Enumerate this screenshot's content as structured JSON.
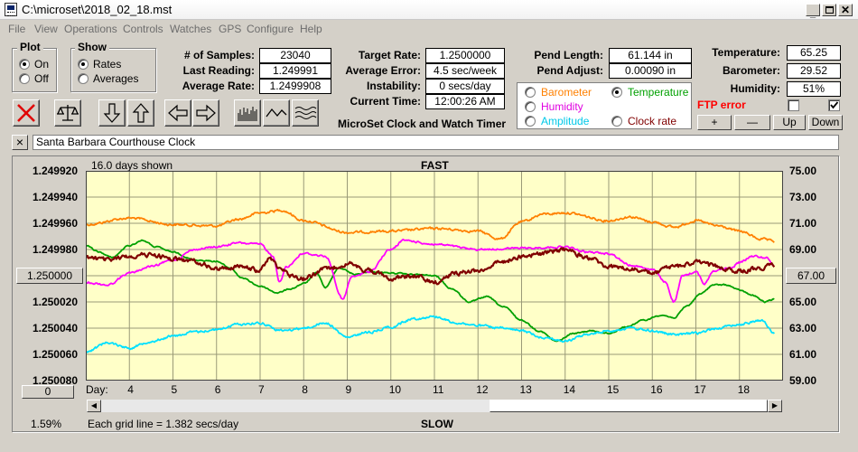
{
  "window": {
    "title": "C:\\microset\\2018_02_18.mst"
  },
  "menu": [
    "File",
    "View",
    "Operations",
    "Controls",
    "Watches",
    "GPS",
    "Configure",
    "Help"
  ],
  "plot_group": {
    "title": "Plot",
    "on": "On",
    "off": "Off",
    "selected": "On"
  },
  "show_group": {
    "title": "Show",
    "rates": "Rates",
    "averages": "Averages",
    "selected": "Rates"
  },
  "stats": {
    "samples_label": "# of Samples:",
    "samples": "23040",
    "last_label": "Last Reading:",
    "last": "1.249991",
    "avg_label": "Average Rate:",
    "avg": "1.2499908"
  },
  "rates": {
    "target_label": "Target Rate:",
    "target": "1.2500000",
    "error_label": "Average Error:",
    "error": "4.5 sec/week",
    "instab_label": "Instability:",
    "instab": "0 secs/day",
    "time_label": "Current Time:",
    "time": "12:00:26 AM",
    "app_name": "MicroSet Clock and Watch Timer"
  },
  "pend": {
    "length_label": "Pend Length:",
    "length": "61.144 in",
    "adjust_label": "Pend Adjust:",
    "adjust": "0.00090 in"
  },
  "sensor_select": {
    "barometer": "Barometer",
    "temperature": "Temperature",
    "humidity": "Humidity",
    "amplitude": "Amplitude",
    "clock_rate": "Clock rate",
    "selected": "Temperature"
  },
  "environment": {
    "temp_label": "Temperature:",
    "temp": "65.25",
    "baro_label": "Barometer:",
    "baro": "29.52",
    "hum_label": "Humidity:",
    "hum": "51%",
    "ftp": "FTP error",
    "ftp_check1": false,
    "ftp_check2": true,
    "btn_plus": "+",
    "btn_minus": "—",
    "btn_up": "Up",
    "btn_down": "Down"
  },
  "clock_name": "Santa Barbara Courthouse Clock",
  "close_glyph": "×",
  "chart_header": {
    "days_shown": "16.0 days shown",
    "fast": "FAST",
    "slow": "SLOW"
  },
  "left_axis_button": "1.250000",
  "right_axis_button": "67.00",
  "zero_button": "0",
  "percent": "1.59%",
  "grid_note": "Each grid line = 1.382 secs/day",
  "colors": {
    "plot_bg": "#ffffc8",
    "grid": "#9a9a78",
    "barometer": "#ff8000",
    "temperature": "#00a000",
    "humidity": "#ff00ff",
    "amplitude": "#00e0ff",
    "clock_rate": "#800000",
    "ftp": "#ff0000",
    "stop": "#e00000"
  },
  "chart_data": {
    "type": "line",
    "xlabel": "Day:",
    "x_ticks": [
      4,
      5,
      6,
      7,
      8,
      9,
      10,
      11,
      12,
      13,
      14,
      15,
      16,
      17,
      18
    ],
    "xlim": [
      3.0,
      19.0
    ],
    "left_ticks": [
      "1.249920",
      "1.249940",
      "1.249960",
      "1.249980",
      "1.250000",
      "1.250020",
      "1.250040",
      "1.250060",
      "1.250080"
    ],
    "left_ylim": [
      1.24992,
      1.25008
    ],
    "right_ticks": [
      "75.00",
      "73.00",
      "71.00",
      "69.00",
      "67.00",
      "65.00",
      "63.00",
      "61.00",
      "59.00"
    ],
    "right_ylim": [
      59,
      75
    ],
    "series": [
      {
        "name": "Barometer",
        "color": "#ff8000",
        "axis": "left",
        "noise": 1.5e-06,
        "points": [
          [
            3,
            1.249961
          ],
          [
            4,
            1.249956
          ],
          [
            5,
            1.249961
          ],
          [
            6,
            1.249962
          ],
          [
            6.5,
            1.249957
          ],
          [
            7,
            1.249952
          ],
          [
            7.5,
            1.24995
          ],
          [
            8,
            1.249958
          ],
          [
            9,
            1.249967
          ],
          [
            10,
            1.249966
          ],
          [
            11,
            1.249964
          ],
          [
            12,
            1.249966
          ],
          [
            12.5,
            1.249972
          ],
          [
            13,
            1.249959
          ],
          [
            13.5,
            1.249953
          ],
          [
            14,
            1.249952
          ],
          [
            15,
            1.249958
          ],
          [
            15.5,
            1.249955
          ],
          [
            16,
            1.249959
          ],
          [
            16.5,
            1.249963
          ],
          [
            17,
            1.249958
          ],
          [
            17.5,
            1.249962
          ],
          [
            18,
            1.249966
          ],
          [
            18.5,
            1.249972
          ],
          [
            18.8,
            1.249974
          ]
        ]
      },
      {
        "name": "Temperature",
        "color": "#00a000",
        "axis": "left",
        "noise": 8e-07,
        "points": [
          [
            3,
            1.249977
          ],
          [
            3.3,
            1.249982
          ],
          [
            3.6,
            1.249986
          ],
          [
            4,
            1.249977
          ],
          [
            4.3,
            1.249973
          ],
          [
            4.6,
            1.249978
          ],
          [
            5,
            1.249982
          ],
          [
            5.5,
            1.249988
          ],
          [
            6,
            1.249989
          ],
          [
            6.3,
            1.249994
          ],
          [
            6.6,
            1.250002
          ],
          [
            7,
            1.250008
          ],
          [
            7.4,
            1.250013
          ],
          [
            7.7,
            1.25001
          ],
          [
            8,
            1.250006
          ],
          [
            8.3,
            1.249998
          ],
          [
            8.5,
            1.250009
          ],
          [
            8.8,
            1.249994
          ],
          [
            9.2,
            1.249999
          ],
          [
            9.5,
            1.249997
          ],
          [
            10,
            1.249998
          ],
          [
            10.5,
            1.249999
          ],
          [
            11,
            1.25
          ],
          [
            11.4,
            1.25001
          ],
          [
            11.8,
            1.25002
          ],
          [
            12.2,
            1.250016
          ],
          [
            12.6,
            1.250024
          ],
          [
            13,
            1.250034
          ],
          [
            13.4,
            1.250042
          ],
          [
            13.8,
            1.25005
          ],
          [
            14.2,
            1.250044
          ],
          [
            14.6,
            1.250042
          ],
          [
            15,
            1.250044
          ],
          [
            15.4,
            1.250039
          ],
          [
            15.8,
            1.250034
          ],
          [
            16.2,
            1.25003
          ],
          [
            16.5,
            1.250032
          ],
          [
            16.8,
            1.250023
          ],
          [
            17.1,
            1.250014
          ],
          [
            17.4,
            1.250007
          ],
          [
            17.7,
            1.250007
          ],
          [
            18,
            1.250011
          ],
          [
            18.3,
            1.250015
          ],
          [
            18.6,
            1.25002
          ],
          [
            18.8,
            1.250018
          ]
        ]
      },
      {
        "name": "Humidity",
        "color": "#ff00ff",
        "axis": "left",
        "noise": 1.2e-06,
        "points": [
          [
            3,
            1.250005
          ],
          [
            3.5,
            1.250007
          ],
          [
            4,
            1.249998
          ],
          [
            4.5,
            1.249993
          ],
          [
            5,
            1.249988
          ],
          [
            5.5,
            1.24998
          ],
          [
            6,
            1.249978
          ],
          [
            6.5,
            1.249975
          ],
          [
            7,
            1.249976
          ],
          [
            7.3,
            1.249985
          ],
          [
            7.45,
            1.250005
          ],
          [
            7.6,
            1.249993
          ],
          [
            8,
            1.249983
          ],
          [
            8.5,
            1.249985
          ],
          [
            8.9,
            1.250018
          ],
          [
            9.1,
            1.250001
          ],
          [
            9.5,
            1.249997
          ],
          [
            10,
            1.24998
          ],
          [
            10.3,
            1.249973
          ],
          [
            11,
            1.249976
          ],
          [
            12,
            1.24998
          ],
          [
            13,
            1.249979
          ],
          [
            14,
            1.249978
          ],
          [
            14.5,
            1.249982
          ],
          [
            15,
            1.249983
          ],
          [
            15.5,
            1.249992
          ],
          [
            16,
            1.249995
          ],
          [
            16.3,
            1.250005
          ],
          [
            16.5,
            1.25002
          ],
          [
            16.7,
            1.25
          ],
          [
            17,
            1.249997
          ],
          [
            17.2,
            1.250006
          ],
          [
            17.4,
            1.249996
          ],
          [
            17.8,
            1.249994
          ],
          [
            18,
            1.24999
          ],
          [
            18.3,
            1.249985
          ],
          [
            18.6,
            1.249986
          ],
          [
            18.8,
            1.249992
          ]
        ]
      },
      {
        "name": "Amplitude",
        "color": "#00e0ff",
        "axis": "left",
        "noise": 1.5e-06,
        "points": [
          [
            3,
            1.250058
          ],
          [
            3.5,
            1.250051
          ],
          [
            4,
            1.250055
          ],
          [
            4.5,
            1.25005
          ],
          [
            5,
            1.250046
          ],
          [
            5.5,
            1.250043
          ],
          [
            6,
            1.250041
          ],
          [
            6.5,
            1.250037
          ],
          [
            7,
            1.250036
          ],
          [
            7.5,
            1.250042
          ],
          [
            8,
            1.25004
          ],
          [
            8.5,
            1.250036
          ],
          [
            9,
            1.250047
          ],
          [
            9.5,
            1.250043
          ],
          [
            10,
            1.250039
          ],
          [
            10.5,
            1.250033
          ],
          [
            11,
            1.250031
          ],
          [
            11.5,
            1.250036
          ],
          [
            12,
            1.250038
          ],
          [
            12.5,
            1.25004
          ],
          [
            13,
            1.250042
          ],
          [
            13.5,
            1.250047
          ],
          [
            14,
            1.25005
          ],
          [
            14.5,
            1.250045
          ],
          [
            15,
            1.250042
          ],
          [
            15.5,
            1.25004
          ],
          [
            16,
            1.250042
          ],
          [
            16.5,
            1.250045
          ],
          [
            17,
            1.250044
          ],
          [
            17.5,
            1.25004
          ],
          [
            18,
            1.250037
          ],
          [
            18.5,
            1.250034
          ],
          [
            18.8,
            1.250044
          ]
        ]
      },
      {
        "name": "Clock rate",
        "color": "#800000",
        "axis": "left",
        "noise": 2.8e-06,
        "points": [
          [
            3,
            1.249986
          ],
          [
            3.5,
            1.249988
          ],
          [
            4,
            1.249985
          ],
          [
            4.5,
            1.249984
          ],
          [
            5,
            1.249987
          ],
          [
            5.5,
            1.249989
          ],
          [
            6,
            1.249995
          ],
          [
            6.5,
            1.249993
          ],
          [
            7,
            1.249996
          ],
          [
            7.2,
            1.249987
          ],
          [
            7.45,
            1.249993
          ],
          [
            7.7,
            1.25
          ],
          [
            8,
            1.250002
          ],
          [
            8.5,
            1.249995
          ],
          [
            9,
            1.249991
          ],
          [
            9.5,
            1.249996
          ],
          [
            10,
            1.250002
          ],
          [
            10.5,
            1.25
          ],
          [
            11,
            1.250005
          ],
          [
            11.5,
            1.249998
          ],
          [
            12,
            1.249996
          ],
          [
            12.5,
            1.24999
          ],
          [
            13,
            1.249985
          ],
          [
            13.5,
            1.249983
          ],
          [
            14,
            1.24998
          ],
          [
            14.5,
            1.249986
          ],
          [
            15,
            1.249993
          ],
          [
            15.5,
            1.249995
          ],
          [
            16,
            1.249998
          ],
          [
            16.5,
            1.249993
          ],
          [
            17,
            1.24999
          ],
          [
            17.5,
            1.249993
          ],
          [
            18,
            1.249997
          ],
          [
            18.5,
            1.249994
          ],
          [
            18.8,
            1.249992
          ]
        ]
      }
    ]
  },
  "scrollbar": {
    "left": "◀",
    "right": "▶"
  }
}
